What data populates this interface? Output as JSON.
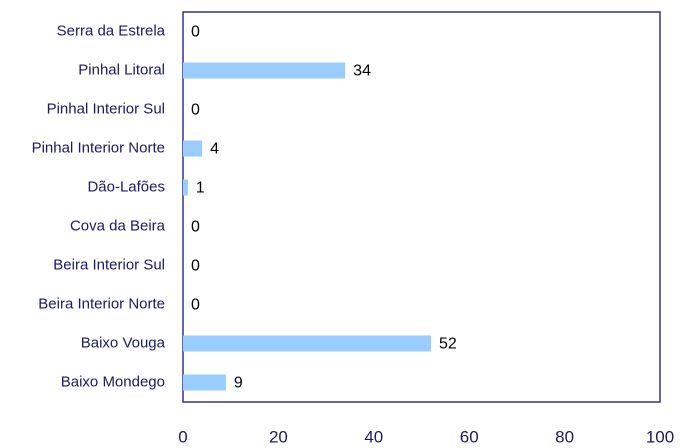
{
  "chart_data": {
    "type": "bar",
    "orientation": "horizontal",
    "categories": [
      "Serra da Estrela",
      "Pinhal Litoral",
      "Pinhal Interior Sul",
      "Pinhal Interior Norte",
      "Dão-Lafões",
      "Cova da Beira",
      "Beira Interior Sul",
      "Beira Interior Norte",
      "Baixo Vouga",
      "Baixo Mondego"
    ],
    "values": [
      0,
      34,
      0,
      4,
      1,
      0,
      0,
      0,
      52,
      9
    ],
    "color": "#99ccff",
    "xlim": [
      0,
      100
    ],
    "xticks": [
      0,
      20,
      40,
      60,
      80,
      100
    ]
  }
}
